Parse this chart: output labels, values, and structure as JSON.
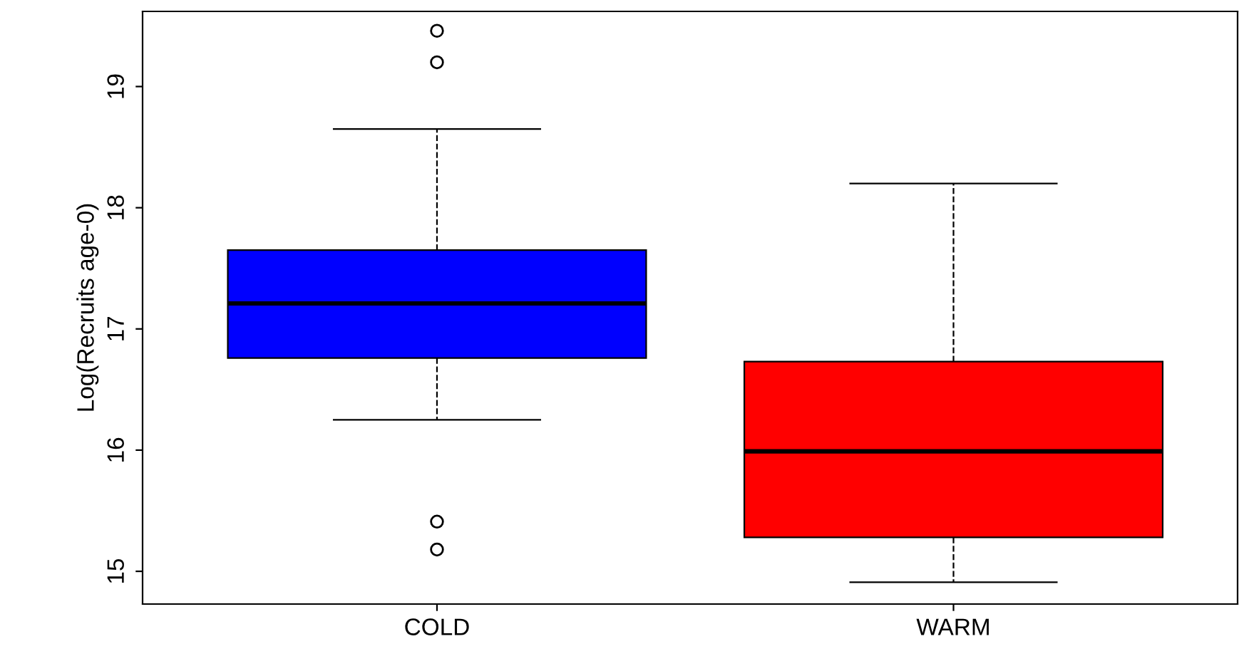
{
  "chart_data": {
    "type": "box",
    "ylabel": "Log(Recruits age-0)",
    "categories": [
      "COLD",
      "WARM"
    ],
    "colors": [
      "#0000ff",
      "#ff0000"
    ],
    "boxes": [
      {
        "low": 16.25,
        "q1": 16.76,
        "median": 17.21,
        "q3": 17.65,
        "high": 18.65,
        "outliers": [
          19.46,
          19.2,
          15.41,
          15.18
        ]
      },
      {
        "low": 14.91,
        "q1": 15.28,
        "median": 15.99,
        "q3": 16.73,
        "high": 18.2
      }
    ],
    "ylim": [
      14.73,
      19.62
    ],
    "yticks": [
      15,
      16,
      17,
      18,
      19
    ],
    "grid": false,
    "legend": false
  }
}
